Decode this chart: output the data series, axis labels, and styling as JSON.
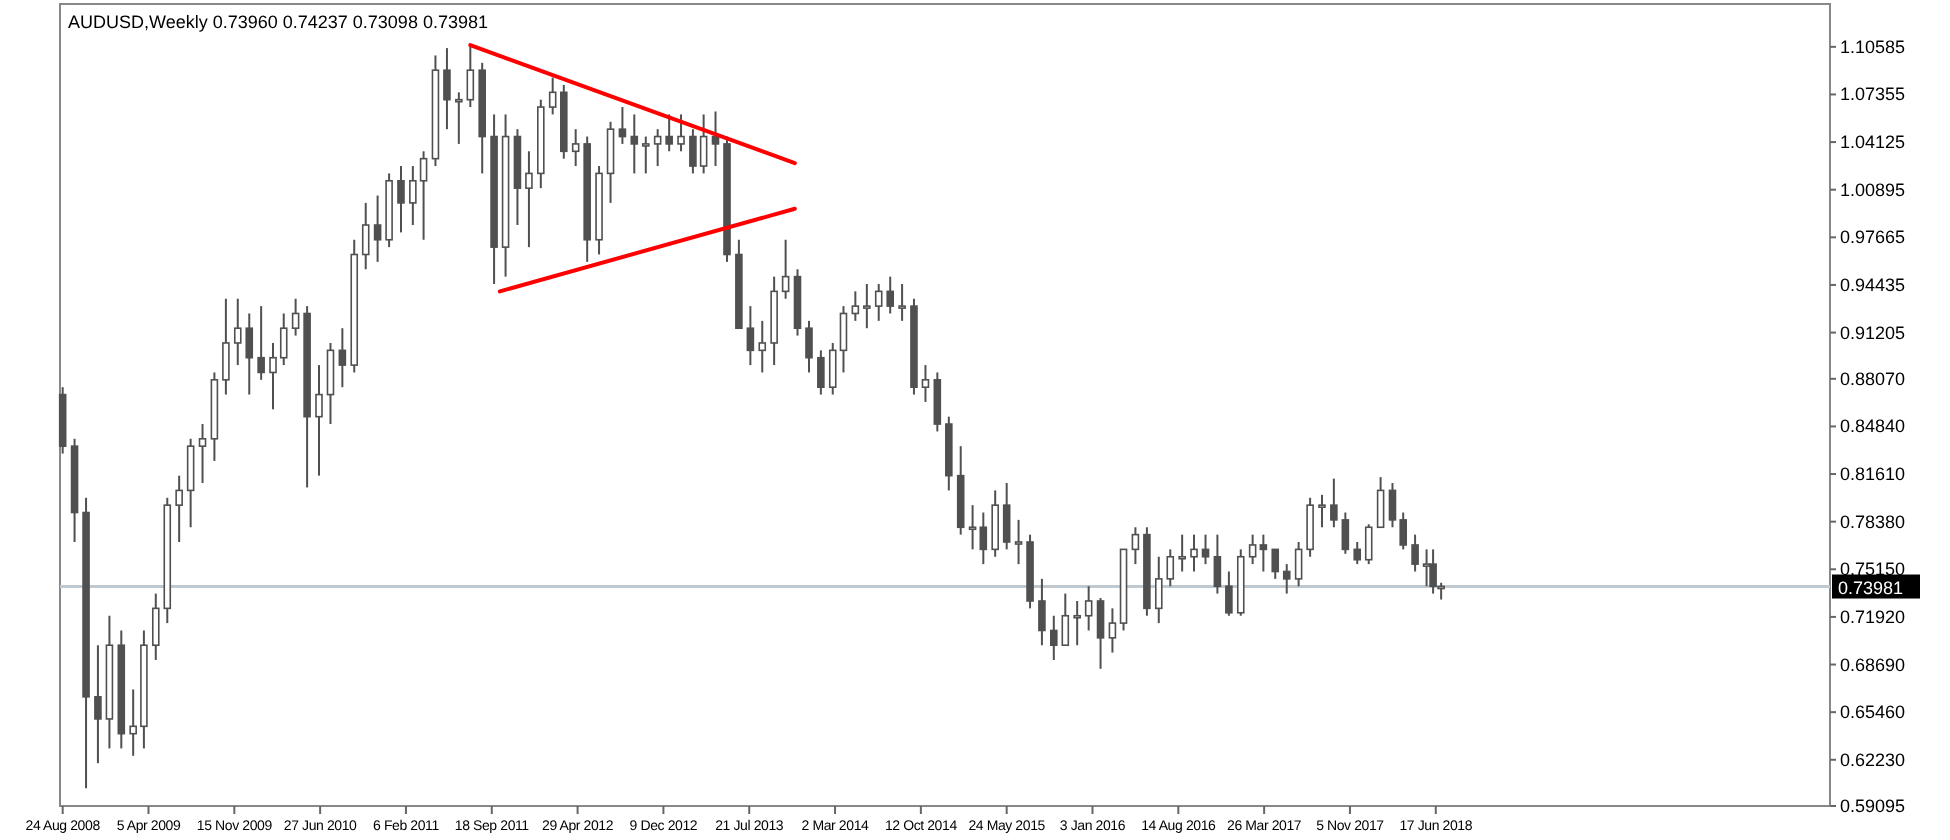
{
  "chart_data": {
    "type": "candlestick",
    "title": "AUDUSD,Weekly  0.73960 0.74237 0.73098 0.73981",
    "color": "#505050",
    "x": [
      "2008-08-24",
      "2008-09-24",
      "2008-10-24",
      "2008-11-24",
      "2008-12-24",
      "2009-01-24",
      "2009-02-24",
      "2009-03-24",
      "2009-04-24",
      "2009-05-24",
      "2009-06-24",
      "2009-07-24",
      "2009-08-24",
      "2009-09-24",
      "2009-10-24",
      "2009-11-24",
      "2009-12-24",
      "2010-01-24",
      "2010-02-24",
      "2010-03-24",
      "2010-04-24",
      "2010-05-24",
      "2010-06-24",
      "2010-07-24",
      "2010-08-24",
      "2010-09-24",
      "2010-10-24",
      "2010-11-24",
      "2010-12-24",
      "2011-01-24",
      "2011-02-24",
      "2011-03-24",
      "2011-04-24",
      "2011-05-24",
      "2011-06-24",
      "2011-07-24",
      "2011-08-24",
      "2011-09-24",
      "2011-10-24",
      "2011-11-24",
      "2011-12-24",
      "2012-01-24",
      "2012-02-24",
      "2012-03-24",
      "2012-04-24",
      "2012-05-24",
      "2012-06-24",
      "2012-07-24",
      "2012-08-24",
      "2012-09-24",
      "2012-10-24",
      "2012-11-24",
      "2012-12-24",
      "2013-01-24",
      "2013-02-24",
      "2013-03-24",
      "2013-04-24",
      "2013-05-24",
      "2013-06-24",
      "2013-07-24",
      "2013-08-24",
      "2013-09-24",
      "2013-10-24",
      "2013-11-24",
      "2013-12-24",
      "2014-01-24",
      "2014-02-24",
      "2014-03-24",
      "2014-04-24",
      "2014-05-24",
      "2014-06-24",
      "2014-07-24",
      "2014-08-24",
      "2014-09-24",
      "2014-10-24",
      "2014-11-24",
      "2014-12-24",
      "2015-01-24",
      "2015-02-24",
      "2015-03-24",
      "2015-04-24",
      "2015-05-24",
      "2015-06-24",
      "2015-07-24",
      "2015-08-24",
      "2015-09-24",
      "2015-10-24",
      "2015-11-24",
      "2015-12-24",
      "2016-01-24",
      "2016-02-24",
      "2016-03-24",
      "2016-04-24",
      "2016-05-24",
      "2016-06-24",
      "2016-07-24",
      "2016-08-24",
      "2016-09-24",
      "2016-10-24",
      "2016-11-24",
      "2016-12-24",
      "2017-01-24",
      "2017-02-24",
      "2017-03-24",
      "2017-04-24",
      "2017-05-24",
      "2017-06-24",
      "2017-07-24",
      "2017-08-24",
      "2017-09-24",
      "2017-10-24",
      "2017-11-24",
      "2017-12-24",
      "2018-01-24",
      "2018-02-24",
      "2018-03-24",
      "2018-04-24",
      "2018-05-24",
      "2018-06-10",
      "2018-07-01"
    ],
    "ohlc": [
      [
        0.87,
        0.875,
        0.83,
        0.835
      ],
      [
        0.835,
        0.84,
        0.77,
        0.79
      ],
      [
        0.79,
        0.8,
        0.603,
        0.665
      ],
      [
        0.665,
        0.7,
        0.62,
        0.65
      ],
      [
        0.65,
        0.72,
        0.63,
        0.7
      ],
      [
        0.7,
        0.71,
        0.63,
        0.64
      ],
      [
        0.64,
        0.67,
        0.625,
        0.645
      ],
      [
        0.645,
        0.71,
        0.63,
        0.7
      ],
      [
        0.7,
        0.735,
        0.69,
        0.725
      ],
      [
        0.725,
        0.8,
        0.715,
        0.795
      ],
      [
        0.795,
        0.815,
        0.77,
        0.805
      ],
      [
        0.805,
        0.84,
        0.78,
        0.835
      ],
      [
        0.835,
        0.85,
        0.81,
        0.84
      ],
      [
        0.84,
        0.885,
        0.825,
        0.88
      ],
      [
        0.88,
        0.935,
        0.87,
        0.905
      ],
      [
        0.905,
        0.935,
        0.89,
        0.915
      ],
      [
        0.915,
        0.925,
        0.87,
        0.895
      ],
      [
        0.895,
        0.93,
        0.88,
        0.885
      ],
      [
        0.885,
        0.905,
        0.86,
        0.895
      ],
      [
        0.895,
        0.925,
        0.89,
        0.915
      ],
      [
        0.915,
        0.935,
        0.91,
        0.925
      ],
      [
        0.925,
        0.93,
        0.807,
        0.855
      ],
      [
        0.855,
        0.89,
        0.815,
        0.87
      ],
      [
        0.87,
        0.905,
        0.85,
        0.9
      ],
      [
        0.9,
        0.915,
        0.875,
        0.89
      ],
      [
        0.89,
        0.975,
        0.885,
        0.965
      ],
      [
        0.965,
        1.0,
        0.955,
        0.985
      ],
      [
        0.985,
        1.005,
        0.96,
        0.975
      ],
      [
        0.975,
        1.02,
        0.97,
        1.015
      ],
      [
        1.015,
        1.025,
        0.98,
        1.0
      ],
      [
        1.0,
        1.025,
        0.985,
        1.015
      ],
      [
        1.015,
        1.035,
        0.975,
        1.03
      ],
      [
        1.03,
        1.1,
        1.025,
        1.09
      ],
      [
        1.09,
        1.105,
        1.05,
        1.07
      ],
      [
        1.07,
        1.075,
        1.04,
        1.07
      ],
      [
        1.07,
        1.107,
        1.065,
        1.09
      ],
      [
        1.09,
        1.095,
        1.02,
        1.045
      ],
      [
        1.045,
        1.06,
        0.945,
        0.97
      ],
      [
        0.97,
        1.06,
        0.95,
        1.045
      ],
      [
        1.045,
        1.05,
        0.985,
        1.01
      ],
      [
        1.01,
        1.035,
        0.97,
        1.02
      ],
      [
        1.02,
        1.07,
        1.01,
        1.065
      ],
      [
        1.065,
        1.085,
        1.06,
        1.075
      ],
      [
        1.075,
        1.08,
        1.03,
        1.035
      ],
      [
        1.035,
        1.05,
        1.025,
        1.04
      ],
      [
        1.04,
        1.045,
        0.96,
        0.975
      ],
      [
        0.975,
        1.025,
        0.965,
        1.02
      ],
      [
        1.02,
        1.055,
        1.0,
        1.05
      ],
      [
        1.05,
        1.065,
        1.04,
        1.045
      ],
      [
        1.045,
        1.06,
        1.02,
        1.04
      ],
      [
        1.04,
        1.045,
        1.02,
        1.04
      ],
      [
        1.04,
        1.05,
        1.025,
        1.045
      ],
      [
        1.045,
        1.06,
        1.035,
        1.04
      ],
      [
        1.04,
        1.06,
        1.035,
        1.045
      ],
      [
        1.045,
        1.05,
        1.02,
        1.025
      ],
      [
        1.025,
        1.06,
        1.02,
        1.045
      ],
      [
        1.045,
        1.062,
        1.025,
        1.04
      ],
      [
        1.04,
        1.045,
        0.96,
        0.965
      ],
      [
        0.965,
        0.975,
        0.915,
        0.915
      ],
      [
        0.915,
        0.93,
        0.89,
        0.9
      ],
      [
        0.9,
        0.92,
        0.885,
        0.905
      ],
      [
        0.905,
        0.95,
        0.89,
        0.94
      ],
      [
        0.94,
        0.975,
        0.935,
        0.95
      ],
      [
        0.95,
        0.955,
        0.91,
        0.915
      ],
      [
        0.915,
        0.92,
        0.885,
        0.895
      ],
      [
        0.895,
        0.9,
        0.87,
        0.875
      ],
      [
        0.875,
        0.905,
        0.87,
        0.9
      ],
      [
        0.9,
        0.93,
        0.885,
        0.925
      ],
      [
        0.925,
        0.94,
        0.92,
        0.93
      ],
      [
        0.93,
        0.945,
        0.915,
        0.93
      ],
      [
        0.93,
        0.945,
        0.92,
        0.94
      ],
      [
        0.94,
        0.95,
        0.925,
        0.93
      ],
      [
        0.93,
        0.945,
        0.92,
        0.93
      ],
      [
        0.93,
        0.935,
        0.87,
        0.875
      ],
      [
        0.875,
        0.89,
        0.865,
        0.88
      ],
      [
        0.88,
        0.885,
        0.845,
        0.85
      ],
      [
        0.85,
        0.855,
        0.805,
        0.815
      ],
      [
        0.815,
        0.835,
        0.775,
        0.78
      ],
      [
        0.78,
        0.795,
        0.765,
        0.78
      ],
      [
        0.78,
        0.79,
        0.755,
        0.765
      ],
      [
        0.765,
        0.805,
        0.76,
        0.795
      ],
      [
        0.795,
        0.81,
        0.765,
        0.77
      ],
      [
        0.77,
        0.785,
        0.755,
        0.77
      ],
      [
        0.77,
        0.775,
        0.725,
        0.73
      ],
      [
        0.73,
        0.745,
        0.7,
        0.71
      ],
      [
        0.71,
        0.72,
        0.69,
        0.7
      ],
      [
        0.7,
        0.735,
        0.7,
        0.72
      ],
      [
        0.72,
        0.73,
        0.7,
        0.72
      ],
      [
        0.72,
        0.74,
        0.71,
        0.73
      ],
      [
        0.73,
        0.732,
        0.684,
        0.705
      ],
      [
        0.705,
        0.725,
        0.695,
        0.715
      ],
      [
        0.715,
        0.765,
        0.71,
        0.765
      ],
      [
        0.765,
        0.78,
        0.755,
        0.775
      ],
      [
        0.775,
        0.78,
        0.72,
        0.725
      ],
      [
        0.725,
        0.76,
        0.715,
        0.745
      ],
      [
        0.745,
        0.765,
        0.74,
        0.76
      ],
      [
        0.76,
        0.775,
        0.75,
        0.76
      ],
      [
        0.76,
        0.775,
        0.75,
        0.765
      ],
      [
        0.765,
        0.775,
        0.755,
        0.76
      ],
      [
        0.76,
        0.775,
        0.735,
        0.74
      ],
      [
        0.74,
        0.75,
        0.72,
        0.722
      ],
      [
        0.722,
        0.765,
        0.72,
        0.76
      ],
      [
        0.76,
        0.775,
        0.755,
        0.768
      ],
      [
        0.768,
        0.775,
        0.75,
        0.765
      ],
      [
        0.765,
        0.765,
        0.745,
        0.75
      ],
      [
        0.75,
        0.755,
        0.735,
        0.745
      ],
      [
        0.745,
        0.77,
        0.74,
        0.765
      ],
      [
        0.765,
        0.8,
        0.76,
        0.795
      ],
      [
        0.795,
        0.802,
        0.78,
        0.795
      ],
      [
        0.795,
        0.813,
        0.78,
        0.785
      ],
      [
        0.785,
        0.79,
        0.762,
        0.765
      ],
      [
        0.765,
        0.77,
        0.755,
        0.758
      ],
      [
        0.758,
        0.782,
        0.755,
        0.78
      ],
      [
        0.78,
        0.814,
        0.78,
        0.805
      ],
      [
        0.805,
        0.81,
        0.78,
        0.785
      ],
      [
        0.785,
        0.79,
        0.765,
        0.768
      ],
      [
        0.768,
        0.775,
        0.75,
        0.755
      ],
      [
        0.755,
        0.765,
        0.74,
        0.755
      ],
      [
        0.755,
        0.765,
        0.735,
        0.74
      ],
      [
        0.7396,
        0.74237,
        0.73098,
        0.73981
      ]
    ],
    "series": [
      {
        "type": "line",
        "x": [
          "2011-07-24",
          "2013-11-17"
        ],
        "values": [
          1.107,
          1.027
        ],
        "color": "#ff0000"
      },
      {
        "type": "line",
        "x": [
          "2011-10-09",
          "2013-11-17"
        ],
        "values": [
          0.94,
          0.996
        ],
        "color": "#ff0000"
      }
    ],
    "ref_lines": [
      {
        "axis": "y",
        "value": 0.73981,
        "label": "0.73981",
        "color": "#c0c8d0"
      }
    ],
    "xlim": [
      "2008-08-17",
      "2021-04-11"
    ],
    "xticks": [
      {
        "value": "2008-08-24",
        "label": "24 Aug 2008"
      },
      {
        "value": "2009-04-05",
        "label": "5 Apr 2009"
      },
      {
        "value": "2009-11-15",
        "label": "15 Nov 2009"
      },
      {
        "value": "2010-06-27",
        "label": "27 Jun 2010"
      },
      {
        "value": "2011-02-06",
        "label": "6 Feb 2011"
      },
      {
        "value": "2011-09-18",
        "label": "18 Sep 2011"
      },
      {
        "value": "2012-04-29",
        "label": "29 Apr 2012"
      },
      {
        "value": "2012-12-09",
        "label": "9 Dec 2012"
      },
      {
        "value": "2013-07-21",
        "label": "21 Jul 2013"
      },
      {
        "value": "2014-03-02",
        "label": "2 Mar 2014"
      },
      {
        "value": "2014-10-12",
        "label": "12 Oct 2014"
      },
      {
        "value": "2015-05-24",
        "label": "24 May 2015"
      },
      {
        "value": "2016-01-03",
        "label": "3 Jan 2016"
      },
      {
        "value": "2016-08-14",
        "label": "14 Aug 2016"
      },
      {
        "value": "2017-03-26",
        "label": "26 Mar 2017"
      },
      {
        "value": "2017-11-05",
        "label": "5 Nov 2017"
      },
      {
        "value": "2018-06-17",
        "label": "17 Jun 2018"
      }
    ],
    "ylim": [
      0.59095,
      1.1349
    ],
    "yticks": [
      1.10585,
      1.07355,
      1.04125,
      1.00895,
      0.97665,
      0.94435,
      0.91205,
      {
        "value": 0.8807,
        "label": "0.88070"
      },
      {
        "value": 0.8484,
        "label": "0.84840"
      },
      {
        "value": 0.8161,
        "label": "0.81610"
      },
      {
        "value": 0.7838,
        "label": "0.78380"
      },
      {
        "value": 0.7515,
        "label": "0.75150"
      },
      {
        "value": 0.7192,
        "label": "0.71920"
      },
      {
        "value": 0.6869,
        "label": "0.68690"
      },
      {
        "value": 0.6546,
        "label": "0.65460"
      },
      {
        "value": 0.6223,
        "label": "0.62230"
      },
      0.59095
    ]
  }
}
